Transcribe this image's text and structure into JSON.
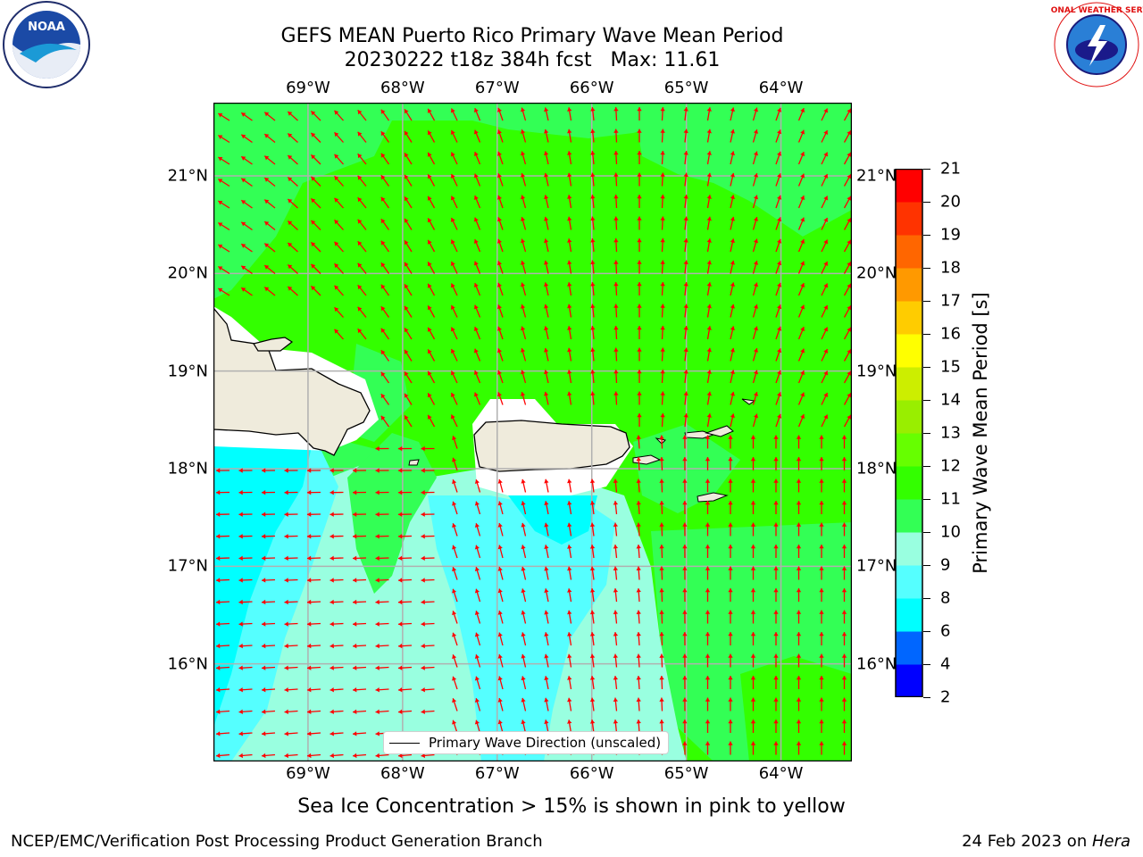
{
  "title": {
    "line1": "GEFS MEAN Puerto Rico Primary Wave Mean Period",
    "line2": "20230222 t18z 384h fcst   Max: 11.61"
  },
  "logos": {
    "left": {
      "name": "NOAA",
      "ring_text": "NATIONAL OCEANIC AND ATMOSPHERIC ADMINISTRATION",
      "bottom_text": "U.S. DEPARTMENT OF COMMERCE"
    },
    "right": {
      "name": "NATIONAL WEATHER SERVICE"
    }
  },
  "map": {
    "lon_ticks": [
      "69°W",
      "68°W",
      "67°W",
      "66°W",
      "65°W",
      "64°W"
    ],
    "lon_values": [
      -69,
      -68,
      -67,
      -66,
      -65,
      -64
    ],
    "lat_ticks": [
      "21°N",
      "20°N",
      "19°N",
      "18°N",
      "17°N",
      "16°N"
    ],
    "lat_values": [
      21,
      20,
      19,
      18,
      17,
      16
    ],
    "extent": {
      "lon_min": -70,
      "lon_max": -63.25,
      "lat_min": 15,
      "lat_max": 21.75
    },
    "grid": true,
    "arrow_color": "#ff0000",
    "land_color": "#efebdc",
    "legend_label": "Primary Wave Direction (unscaled)"
  },
  "colorbar": {
    "title": "Primary Wave Mean Period [s]",
    "levels": [
      "2",
      "4",
      "6",
      "8",
      "9",
      "10",
      "11",
      "12",
      "13",
      "14",
      "15",
      "16",
      "17",
      "18",
      "19",
      "20",
      "21"
    ],
    "colors": [
      "#0000ff",
      "#0066ff",
      "#00ffff",
      "#55ffff",
      "#99ffe0",
      "#33ff55",
      "#33ff00",
      "#66ff00",
      "#99ee00",
      "#ccee00",
      "#ffff00",
      "#ffcc00",
      "#ff9900",
      "#ff6600",
      "#ff3300",
      "#ff0000"
    ]
  },
  "note": "Sea Ice Concentration > 15% is shown in pink to yellow",
  "footer": {
    "left": "NCEP/EMC/Verification Post Processing Product Generation Branch",
    "right_prefix": "24 Feb 2023 on ",
    "right_italic": "Hera"
  }
}
